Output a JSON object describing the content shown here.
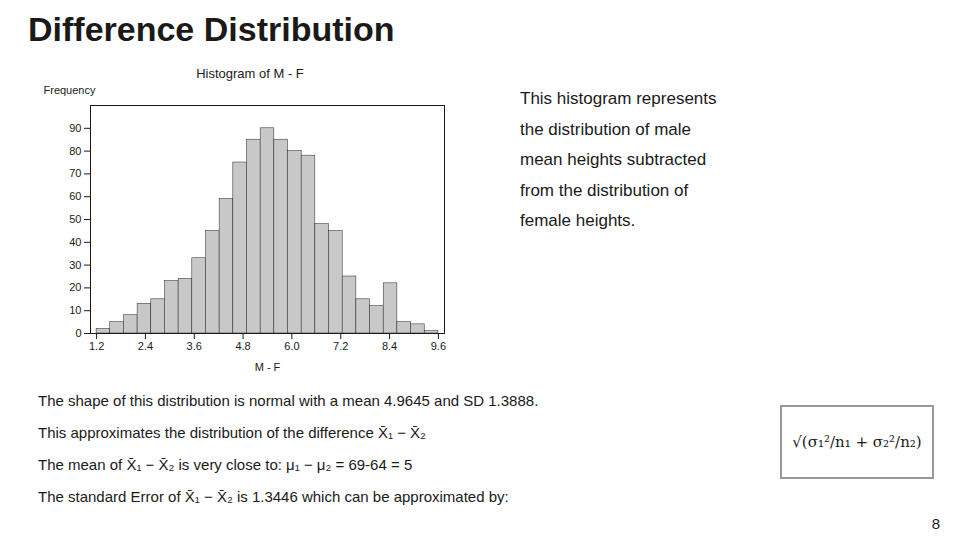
{
  "chart_data": {
    "type": "histogram",
    "title": "Difference Distribution",
    "subtitle": "Histogram of M - F",
    "x_label": "M - F",
    "y_label": "Frequency",
    "bins": [
      1.2,
      1.536,
      1.872,
      2.208,
      2.544,
      2.88,
      3.216,
      3.552,
      3.888,
      4.224,
      4.56,
      4.896,
      5.232,
      5.568,
      5.904,
      6.24,
      6.576,
      6.912,
      7.248,
      7.584,
      7.92,
      8.256,
      8.592,
      8.928,
      9.264,
      9.6
    ],
    "values": [
      2,
      5,
      8,
      13,
      15,
      23,
      24,
      33,
      45,
      59,
      75,
      85,
      90,
      85,
      80,
      78,
      48,
      45,
      25,
      15,
      12,
      22,
      5,
      4,
      1
    ],
    "color": "#c8c8c8",
    "xlim": [
      1.05,
      9.75
    ],
    "xticks": [
      1.2,
      2.4,
      3.6,
      4.8,
      {
        "value": 6,
        "label": "6.0"
      },
      7.2,
      8.4,
      9.6
    ],
    "ylim": [
      0,
      100
    ],
    "yticks": [
      0,
      10,
      20,
      30,
      40,
      50,
      60,
      70,
      80,
      90
    ],
    "grid": false,
    "annotations": [
      "This histogram represents\nthe distribution of male\nmean heights subtracted\nfrom the distribution of\nfemale heights.",
      "The shape of this distribution is normal with a mean 4.9645 and SD 1.3888.",
      "This approximates the distribution of the difference X̄₁ − X̄₂",
      "The mean of X̄₁ − X̄₂ is very close to: μ₁ − μ₂ = 69-64 = 5",
      "The standard Error of X̄₁ − X̄₂ is 1.3446 which can be approximated by:",
      "√(σ₁²/n₁ + σ₂²/n₂)",
      "8"
    ]
  }
}
